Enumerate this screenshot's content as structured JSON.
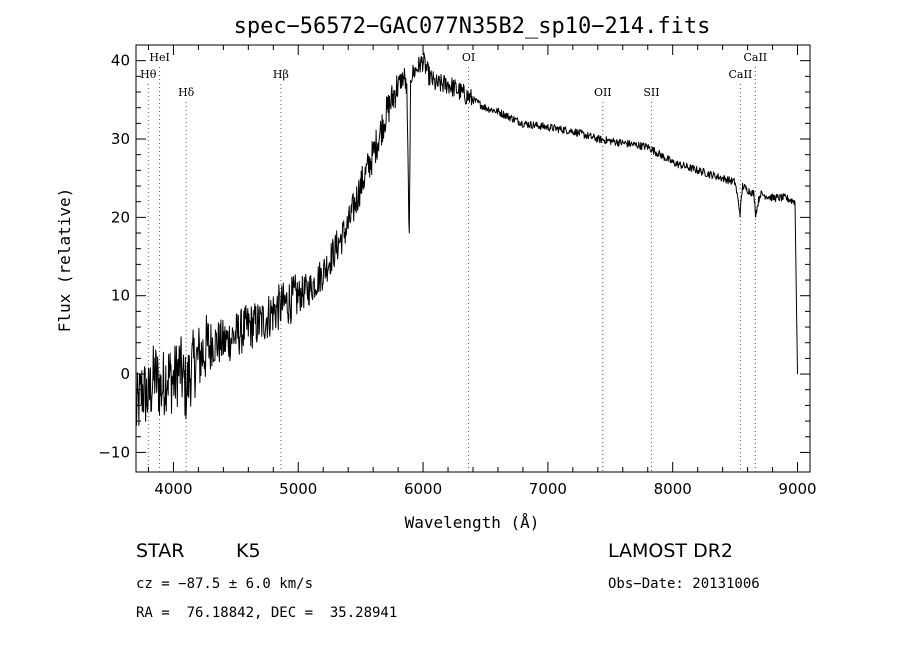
{
  "chart_data": {
    "type": "line",
    "title": "spec−56572−GAC077N35B2_sp10−214.fits",
    "xlabel": "Wavelength (Å)",
    "ylabel": "Flux (relative)",
    "xlim": [
      3700,
      9100
    ],
    "ylim": [
      -12.5,
      42
    ],
    "xticks": [
      4000,
      5000,
      6000,
      7000,
      8000,
      9000
    ],
    "yticks": [
      -10,
      0,
      10,
      20,
      30,
      40
    ],
    "ytick_labels": [
      "−10",
      "0",
      "10",
      "20",
      "30",
      "40"
    ],
    "grid": false,
    "series": [
      {
        "x": [
          3700,
          3750,
          3800,
          3850,
          3900,
          3950,
          4000,
          4050,
          4100,
          4150,
          4200,
          4300,
          4400,
          4500,
          4600,
          4700,
          4800,
          4900,
          5000,
          5100,
          5200,
          5300,
          5400,
          5500,
          5600,
          5700,
          5750,
          5800,
          5850,
          5870,
          5890,
          5900,
          5950,
          6000,
          6050,
          6100,
          6200,
          6300,
          6400,
          6500,
          6600,
          6800,
          7000,
          7200,
          7400,
          7600,
          7800,
          7900,
          8000,
          8200,
          8400,
          8500,
          8540,
          8560,
          8600,
          8650,
          8665,
          8700,
          8800,
          8900,
          8980,
          9000
        ],
        "y": [
          -5,
          -2,
          -3,
          0,
          -2,
          0,
          -1,
          1,
          -2,
          1,
          2,
          4,
          4,
          5,
          6,
          6.5,
          8,
          9,
          10,
          11,
          13,
          16,
          19,
          24,
          28,
          33,
          35,
          37,
          38,
          36,
          17,
          38,
          39,
          40,
          38,
          37,
          37,
          36,
          35,
          34,
          33.5,
          32,
          31.5,
          31,
          30,
          29.5,
          29,
          28,
          27,
          26,
          25,
          24.5,
          20.5,
          24,
          23.5,
          23,
          20.5,
          23,
          22.5,
          22.5,
          22,
          0
        ]
      }
    ],
    "lines": [
      {
        "label": "Hθ",
        "x": 3798,
        "row": 2
      },
      {
        "label": "HeI",
        "x": 3889,
        "row": 1
      },
      {
        "label": "Hδ",
        "x": 4102,
        "row": 3
      },
      {
        "label": "Hβ",
        "x": 4861,
        "row": 2
      },
      {
        "label": "OI",
        "x": 6364,
        "row": 1
      },
      {
        "label": "OII",
        "x": 7440,
        "row": 3
      },
      {
        "label": "SII",
        "x": 7830,
        "row": 3
      },
      {
        "label": "CaII",
        "x": 8542,
        "row": 2
      },
      {
        "label": "CaII",
        "x": 8662,
        "row": 1
      }
    ]
  },
  "info": {
    "object_class": "STAR",
    "subclass": "K5",
    "survey": "LAMOST DR2",
    "velocity": "cz = −87.5 ± 6.0 km/s",
    "obs_date": "Obs−Date: 20131006",
    "coords": "RA =  76.18842, DEC =  35.28941"
  }
}
